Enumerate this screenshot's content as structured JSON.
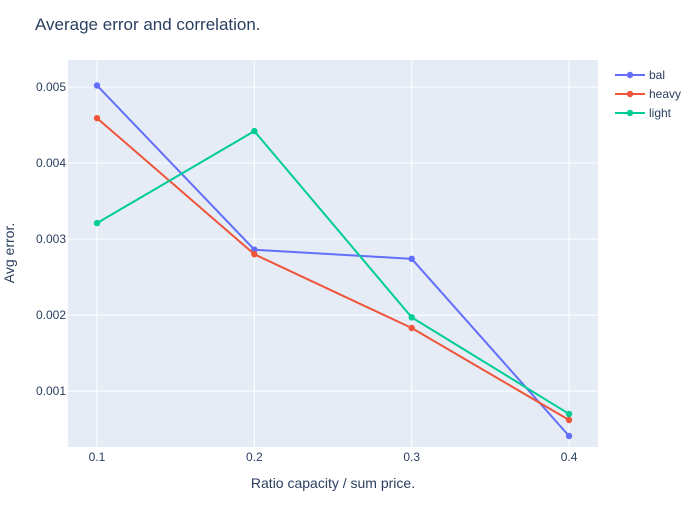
{
  "chart_data": {
    "type": "line",
    "title": "Average error and correlation.",
    "xlabel": "Ratio capacity / sum price.",
    "ylabel": "Avg error.",
    "x": [
      0.1,
      0.2,
      0.3,
      0.4
    ],
    "x_tick_labels": [
      "0.1",
      "0.2",
      "0.3",
      "0.4"
    ],
    "y_ticks": [
      0.001,
      0.002,
      0.003,
      0.004,
      0.005
    ],
    "y_tick_labels": [
      "0.001",
      "0.002",
      "0.003",
      "0.004",
      "0.005"
    ],
    "xlim": [
      0.08157,
      0.4184
    ],
    "ylim": [
      0.000265,
      0.005355
    ],
    "grid": true,
    "legend_position": "top-right",
    "background_color": "#e5ecf6",
    "series": [
      {
        "name": "bal",
        "color": "#636efa",
        "values": [
          0.00502,
          0.00286,
          0.00274,
          0.00041
        ]
      },
      {
        "name": "heavy",
        "color": "#ef553b",
        "values": [
          0.00459,
          0.0028,
          0.00183,
          0.00062
        ]
      },
      {
        "name": "light",
        "color": "#00cc96",
        "values": [
          0.00321,
          0.00442,
          0.00197,
          0.0007
        ]
      }
    ]
  }
}
